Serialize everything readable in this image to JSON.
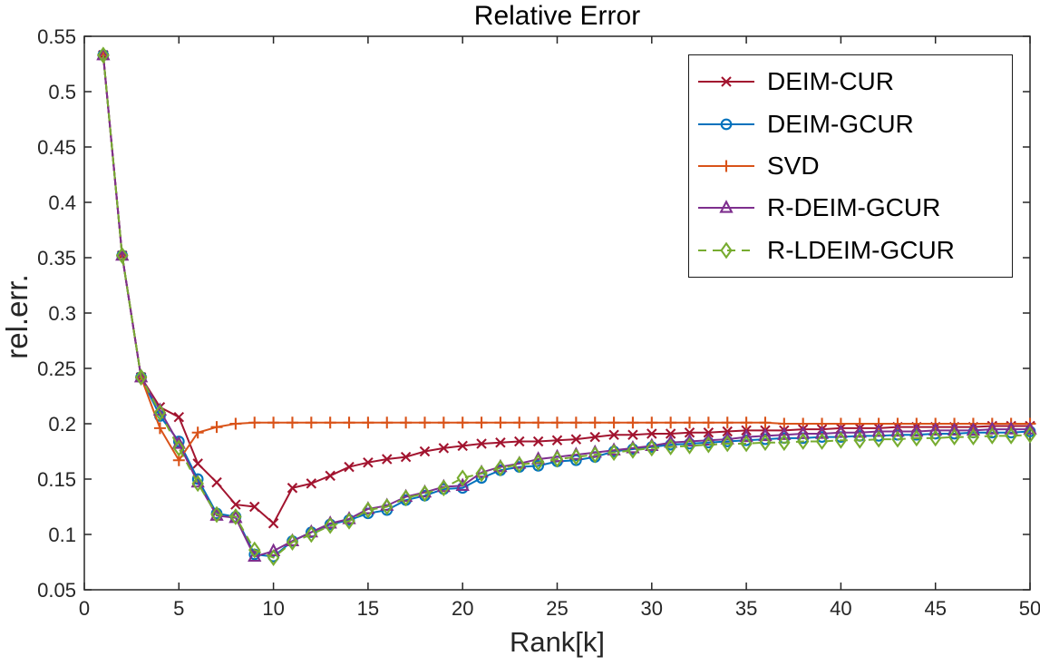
{
  "figure": {
    "background": "#ffffff",
    "axis_color": "#262626",
    "text_color": "#000000"
  },
  "chart_data": {
    "type": "line",
    "title": "Relative Error",
    "xlabel": "Rank[k]",
    "ylabel": "rel.err.",
    "xlim": [
      0,
      50
    ],
    "ylim": [
      0.05,
      0.55
    ],
    "xticks": [
      0,
      5,
      10,
      15,
      20,
      25,
      30,
      35,
      40,
      45,
      50
    ],
    "xtick_labels": [
      "0",
      "5",
      "10",
      "15",
      "20",
      "25",
      "30",
      "35",
      "40",
      "45",
      "50"
    ],
    "yticks": [
      0.05,
      0.1,
      0.15,
      0.2,
      0.25,
      0.3,
      0.35,
      0.4,
      0.45,
      0.5,
      0.55
    ],
    "ytick_labels": [
      "0.05",
      "0.1",
      "0.15",
      "0.2",
      "0.25",
      "0.3",
      "0.35",
      "0.4",
      "0.45",
      "0.5",
      "0.55"
    ],
    "grid": false,
    "legend_position": "top-right",
    "x": [
      1,
      2,
      3,
      4,
      5,
      6,
      7,
      8,
      9,
      10,
      11,
      12,
      13,
      14,
      15,
      16,
      17,
      18,
      19,
      20,
      21,
      22,
      23,
      24,
      25,
      26,
      27,
      28,
      29,
      30,
      31,
      32,
      33,
      34,
      35,
      36,
      37,
      38,
      39,
      40,
      41,
      42,
      43,
      44,
      45,
      46,
      47,
      48,
      49,
      50
    ],
    "series": [
      {
        "name": "DEIM-CUR",
        "color": "#A2142F",
        "marker": "x",
        "linestyle": "solid",
        "values": [
          0.533,
          0.352,
          0.242,
          0.215,
          0.206,
          0.164,
          0.147,
          0.127,
          0.125,
          0.11,
          0.142,
          0.146,
          0.153,
          0.161,
          0.165,
          0.168,
          0.17,
          0.175,
          0.178,
          0.18,
          0.182,
          0.183,
          0.184,
          0.184,
          0.185,
          0.186,
          0.188,
          0.19,
          0.19,
          0.191,
          0.191,
          0.192,
          0.192,
          0.193,
          0.194,
          0.194,
          0.194,
          0.195,
          0.195,
          0.196,
          0.196,
          0.196,
          0.197,
          0.197,
          0.197,
          0.197,
          0.197,
          0.198,
          0.198,
          0.198
        ]
      },
      {
        "name": "DEIM-GCUR",
        "color": "#0072BD",
        "marker": "circle",
        "linestyle": "solid",
        "values": [
          0.533,
          0.352,
          0.242,
          0.207,
          0.184,
          0.15,
          0.119,
          0.116,
          0.082,
          0.08,
          0.094,
          0.102,
          0.109,
          0.113,
          0.119,
          0.122,
          0.131,
          0.135,
          0.141,
          0.142,
          0.151,
          0.158,
          0.161,
          0.162,
          0.166,
          0.167,
          0.17,
          0.175,
          0.177,
          0.179,
          0.181,
          0.182,
          0.183,
          0.184,
          0.185,
          0.186,
          0.187,
          0.187,
          0.188,
          0.188,
          0.189,
          0.189,
          0.19,
          0.19,
          0.191,
          0.191,
          0.192,
          0.192,
          0.192,
          0.193
        ]
      },
      {
        "name": "SVD",
        "color": "#D95319",
        "marker": "plus",
        "linestyle": "solid",
        "values": [
          0.533,
          0.352,
          0.242,
          0.196,
          0.167,
          0.192,
          0.197,
          0.2,
          0.201,
          0.201,
          0.201,
          0.201,
          0.201,
          0.201,
          0.201,
          0.201,
          0.201,
          0.201,
          0.201,
          0.201,
          0.201,
          0.201,
          0.201,
          0.201,
          0.201,
          0.201,
          0.201,
          0.201,
          0.201,
          0.201,
          0.201,
          0.201,
          0.201,
          0.201,
          0.201,
          0.201,
          0.2,
          0.2,
          0.2,
          0.2,
          0.2,
          0.2,
          0.2,
          0.2,
          0.2,
          0.2,
          0.2,
          0.2,
          0.2,
          0.2
        ]
      },
      {
        "name": "R-DEIM-GCUR",
        "color": "#7E2F8E",
        "marker": "triangle",
        "linestyle": "solid",
        "values": [
          0.533,
          0.352,
          0.242,
          0.212,
          0.182,
          0.147,
          0.117,
          0.115,
          0.08,
          0.085,
          0.094,
          0.102,
          0.11,
          0.114,
          0.123,
          0.126,
          0.134,
          0.138,
          0.143,
          0.144,
          0.156,
          0.161,
          0.164,
          0.168,
          0.17,
          0.172,
          0.174,
          0.176,
          0.178,
          0.18,
          0.183,
          0.184,
          0.185,
          0.186,
          0.188,
          0.189,
          0.19,
          0.191,
          0.191,
          0.192,
          0.192,
          0.193,
          0.193,
          0.193,
          0.194,
          0.194,
          0.194,
          0.195,
          0.195,
          0.195
        ]
      },
      {
        "name": "R-LDEIM-GCUR",
        "color": "#77AC30",
        "marker": "diamond",
        "linestyle": "dashed",
        "values": [
          0.533,
          0.352,
          0.242,
          0.21,
          0.178,
          0.146,
          0.118,
          0.116,
          0.086,
          0.079,
          0.093,
          0.1,
          0.108,
          0.112,
          0.122,
          0.125,
          0.133,
          0.137,
          0.142,
          0.151,
          0.155,
          0.16,
          0.163,
          0.165,
          0.168,
          0.17,
          0.172,
          0.174,
          0.176,
          0.178,
          0.179,
          0.18,
          0.181,
          0.182,
          0.182,
          0.183,
          0.183,
          0.184,
          0.184,
          0.185,
          0.185,
          0.186,
          0.186,
          0.187,
          0.187,
          0.188,
          0.188,
          0.189,
          0.189,
          0.19
        ]
      }
    ]
  }
}
